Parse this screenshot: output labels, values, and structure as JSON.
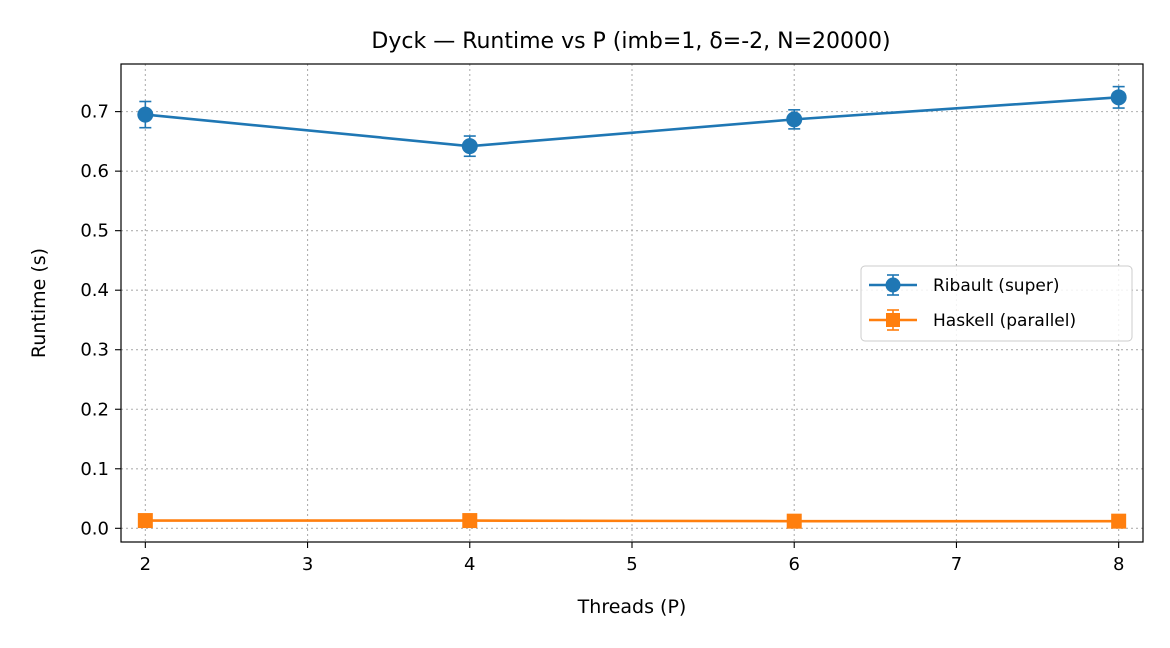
{
  "chart_data": {
    "type": "line",
    "title": "Dyck — Runtime vs P (imb=1, δ=-2, N=20000)",
    "xlabel": "Threads (P)",
    "ylabel": "Runtime (s)",
    "x": [
      2,
      4,
      6,
      8
    ],
    "xlim": [
      1.85,
      8.15
    ],
    "ylim": [
      -0.023,
      0.78
    ],
    "xticks": [
      2,
      3,
      4,
      5,
      6,
      7,
      8
    ],
    "yticks": [
      0.0,
      0.1,
      0.2,
      0.3,
      0.4,
      0.5,
      0.6,
      0.7
    ],
    "grid": true,
    "legend_position": "center-right",
    "series": [
      {
        "name": "Ribault (super)",
        "color": "#1f77b4",
        "marker": "circle",
        "values": [
          0.695,
          0.642,
          0.687,
          0.724
        ],
        "errors": [
          0.022,
          0.017,
          0.016,
          0.018
        ]
      },
      {
        "name": "Haskell (parallel)",
        "color": "#ff7f0e",
        "marker": "square",
        "values": [
          0.013,
          0.013,
          0.012,
          0.012
        ],
        "errors": [
          0.001,
          0.001,
          0.001,
          0.001
        ]
      }
    ]
  }
}
